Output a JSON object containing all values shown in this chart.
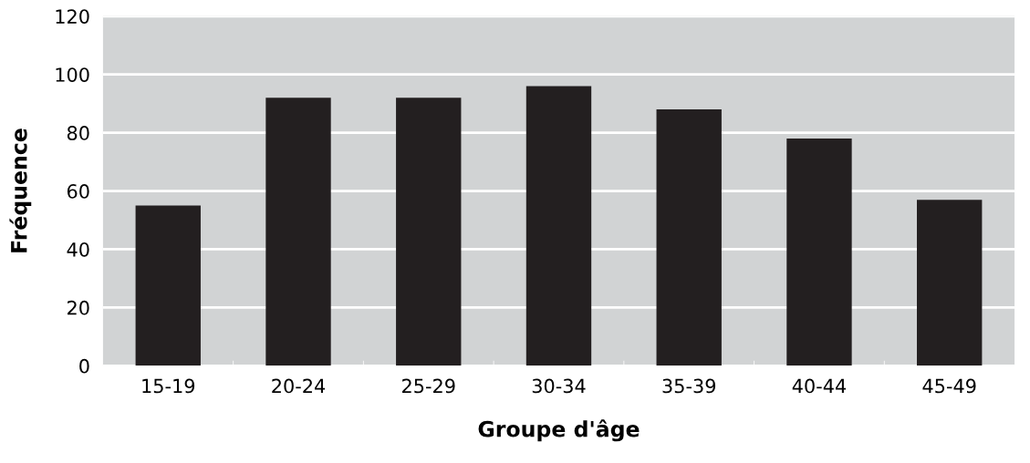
{
  "chart_data": {
    "type": "bar",
    "xlabel": "Groupe d'âge",
    "ylabel": "Fréquence",
    "categories": [
      "15-19",
      "20-24",
      "25-29",
      "30-34",
      "35-39",
      "40-44",
      "45-49"
    ],
    "values": [
      55,
      92,
      92,
      96,
      88,
      78,
      57
    ],
    "color": "#231f20",
    "ylim": [
      0,
      120
    ],
    "yticks": [
      0,
      20,
      40,
      60,
      80,
      100,
      120
    ],
    "grid": "y"
  }
}
